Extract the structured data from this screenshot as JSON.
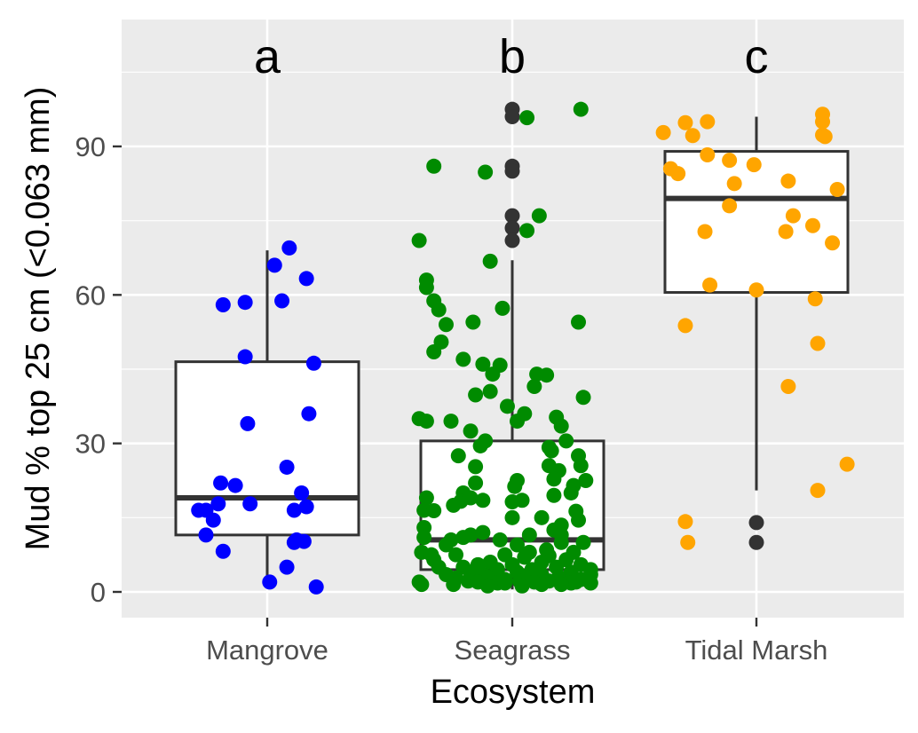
{
  "chart_data": {
    "type": "boxplot-jitter",
    "xlabel": "Ecosystem",
    "ylabel": "Mud % top 25 cm (<0.063 mm)",
    "ylim": [
      -5,
      115
    ],
    "yticks": [
      0,
      30,
      60,
      90
    ],
    "grid": true,
    "background": "#ebebeb",
    "outlier_color": "#333333",
    "categories": [
      "Mangrove",
      "Seagrass",
      "Tidal Marsh"
    ],
    "series": [
      {
        "category": "Mangrove",
        "letter": "a",
        "color": "#0000ff",
        "box": {
          "q1": 11.5,
          "median": 19,
          "q3": 46.5,
          "whisker_low": 2,
          "whisker_high": 69
        },
        "outliers": [],
        "points": [
          [
            -0.18,
            58
          ],
          [
            -0.09,
            58.5
          ],
          [
            0.03,
            66
          ],
          [
            0.09,
            69.5
          ],
          [
            0.16,
            63.3
          ],
          [
            0.06,
            58.8
          ],
          [
            -0.09,
            47.5
          ],
          [
            0.19,
            46.2
          ],
          [
            -0.08,
            34
          ],
          [
            0.17,
            36
          ],
          [
            0.08,
            25.2
          ],
          [
            -0.19,
            22
          ],
          [
            -0.13,
            21.5
          ],
          [
            -0.25,
            16.5
          ],
          [
            -0.28,
            16.5
          ],
          [
            -0.25,
            11.5
          ],
          [
            -0.22,
            14.5
          ],
          [
            -0.2,
            17.8
          ],
          [
            -0.07,
            17.8
          ],
          [
            0.11,
            16.5
          ],
          [
            0.16,
            17.2
          ],
          [
            0.14,
            20
          ],
          [
            0.11,
            10
          ],
          [
            0.15,
            10.2
          ],
          [
            0.12,
            10.5
          ],
          [
            -0.18,
            8.2
          ],
          [
            0.08,
            5
          ],
          [
            0.01,
            2
          ],
          [
            0.2,
            1
          ]
        ]
      },
      {
        "category": "Seagrass",
        "letter": "b",
        "color": "#008b00",
        "box": {
          "q1": 4.5,
          "median": 10.5,
          "q3": 30.5,
          "whisker_low": 0.5,
          "whisker_high": 67
        },
        "outliers": [
          97.5,
          96,
          86,
          85,
          76,
          73.5,
          71
        ],
        "points": [
          [
            0.28,
            97.5
          ],
          [
            0.06,
            95.8
          ],
          [
            -0.32,
            86
          ],
          [
            -0.11,
            84.8
          ],
          [
            0.11,
            76
          ],
          [
            0.06,
            73
          ],
          [
            -0.38,
            71
          ],
          [
            -0.09,
            66.8
          ],
          [
            -0.35,
            63
          ],
          [
            -0.35,
            61.5
          ],
          [
            -0.32,
            58.8
          ],
          [
            -0.3,
            57
          ],
          [
            -0.04,
            57.3
          ],
          [
            0.27,
            54.5
          ],
          [
            -0.27,
            54
          ],
          [
            -0.16,
            54.5
          ],
          [
            -0.29,
            50.5
          ],
          [
            -0.32,
            48.5
          ],
          [
            -0.2,
            47
          ],
          [
            -0.12,
            46
          ],
          [
            -0.05,
            45.8
          ],
          [
            -0.08,
            44
          ],
          [
            0.1,
            44
          ],
          [
            0.14,
            43.8
          ],
          [
            -0.09,
            40.5
          ],
          [
            0.09,
            41.5
          ],
          [
            -0.15,
            39.8
          ],
          [
            0.29,
            39.3
          ],
          [
            -0.02,
            37.5
          ],
          [
            0.05,
            36
          ],
          [
            0.02,
            34.5
          ],
          [
            -0.38,
            35
          ],
          [
            0.18,
            35.3
          ],
          [
            -0.35,
            34.5
          ],
          [
            0.2,
            33.5
          ],
          [
            -0.25,
            34.5
          ],
          [
            -0.17,
            32.5
          ],
          [
            -0.11,
            30.5
          ],
          [
            -0.13,
            29.5
          ],
          [
            0.15,
            29.2
          ],
          [
            0.22,
            30.5
          ],
          [
            0.16,
            28.5
          ],
          [
            0.27,
            27.5
          ],
          [
            -0.22,
            27.5
          ],
          [
            0.15,
            25.5
          ],
          [
            0.19,
            24.5
          ],
          [
            0.28,
            25.5
          ],
          [
            -0.15,
            25.3
          ],
          [
            0.17,
            22.8
          ],
          [
            0.02,
            22.5
          ],
          [
            -0.15,
            22
          ],
          [
            0.3,
            22.5
          ],
          [
            0.25,
            21.5
          ],
          [
            0.24,
            20
          ],
          [
            0.01,
            21.3
          ],
          [
            -0.2,
            20
          ],
          [
            -0.21,
            18.3
          ],
          [
            -0.17,
            19
          ],
          [
            0.17,
            19.5
          ],
          [
            -0.35,
            19
          ],
          [
            -0.12,
            18.5
          ],
          [
            0.04,
            18.5
          ],
          [
            0.0,
            18.2
          ],
          [
            -0.36,
            16.5
          ],
          [
            -0.24,
            17.5
          ],
          [
            -0.32,
            16.4
          ],
          [
            0.26,
            16.3
          ],
          [
            0.12,
            15
          ],
          [
            0.2,
            13.5
          ],
          [
            0.0,
            15
          ],
          [
            -0.36,
            13
          ],
          [
            0.17,
            12.5
          ],
          [
            0.27,
            14.5
          ],
          [
            -0.17,
            11.5
          ],
          [
            -0.12,
            12
          ],
          [
            0.2,
            11.5
          ],
          [
            0.07,
            11.5
          ],
          [
            -0.25,
            10.5
          ],
          [
            -0.2,
            11
          ],
          [
            0.29,
            10
          ],
          [
            -0.36,
            11
          ],
          [
            0.2,
            10
          ],
          [
            -0.27,
            9.5
          ],
          [
            -0.05,
            10.5
          ],
          [
            0.14,
            8.5
          ],
          [
            0.02,
            9.5
          ],
          [
            -0.37,
            8
          ],
          [
            -0.33,
            7.5
          ],
          [
            0.07,
            8
          ],
          [
            0.25,
            8
          ],
          [
            -0.03,
            7.5
          ],
          [
            -0.23,
            7.5
          ],
          [
            0.15,
            7.3
          ],
          [
            0.05,
            7
          ],
          [
            0.22,
            6.5
          ],
          [
            -0.32,
            6.5
          ],
          [
            -0.09,
            6
          ],
          [
            0.12,
            6
          ],
          [
            0.0,
            5.5
          ],
          [
            -0.14,
            5.5
          ],
          [
            0.28,
            5.5
          ],
          [
            -0.3,
            5
          ],
          [
            0.18,
            5
          ],
          [
            -0.2,
            5
          ],
          [
            0.08,
            4.5
          ],
          [
            -0.06,
            4.5
          ],
          [
            0.32,
            4.5
          ],
          [
            -0.17,
            4
          ],
          [
            0.02,
            4
          ],
          [
            0.24,
            4
          ],
          [
            -0.12,
            3.5
          ],
          [
            0.12,
            3.5
          ],
          [
            -0.27,
            3.5
          ],
          [
            0.32,
            3.5
          ],
          [
            0.06,
            3
          ],
          [
            -0.1,
            3
          ],
          [
            0.19,
            3
          ],
          [
            -0.23,
            2.8
          ],
          [
            0.28,
            2.5
          ],
          [
            -0.03,
            2.5
          ],
          [
            -0.18,
            2.2
          ],
          [
            0.15,
            2.2
          ],
          [
            0.03,
            2.2
          ],
          [
            -0.38,
            2
          ],
          [
            0.09,
            2
          ],
          [
            -0.14,
            2
          ],
          [
            0.24,
            1.8
          ],
          [
            -0.06,
            1.8
          ],
          [
            0.32,
            1.8
          ],
          [
            0.12,
            1.5
          ],
          [
            -0.37,
            1.5
          ],
          [
            0.04,
            1.2
          ],
          [
            -0.24,
            1.5
          ],
          [
            0.2,
            1.5
          ],
          [
            -0.1,
            1.2
          ],
          [
            -0.03,
            1.8
          ],
          [
            0.26,
            2
          ]
        ]
      },
      {
        "category": "Tidal Marsh",
        "letter": "c",
        "color": "#ffa500",
        "box": {
          "q1": 60.5,
          "median": 79.5,
          "q3": 89,
          "whisker_low": 20.5,
          "whisker_high": 96
        },
        "outliers": [
          14,
          10
        ],
        "points": [
          [
            -0.38,
            92.8
          ],
          [
            -0.29,
            94.8
          ],
          [
            -0.26,
            92.2
          ],
          [
            -0.2,
            95
          ],
          [
            0.27,
            96.5
          ],
          [
            0.27,
            92.3
          ],
          [
            0.27,
            95
          ],
          [
            0.28,
            92
          ],
          [
            -0.35,
            85.5
          ],
          [
            -0.32,
            84.5
          ],
          [
            -0.2,
            88.3
          ],
          [
            -0.11,
            87.2
          ],
          [
            -0.01,
            86.3
          ],
          [
            -0.09,
            82.5
          ],
          [
            0.13,
            83
          ],
          [
            0.33,
            81.3
          ],
          [
            -0.11,
            78
          ],
          [
            0.15,
            76
          ],
          [
            0.23,
            74
          ],
          [
            -0.21,
            72.8
          ],
          [
            0.12,
            72.8
          ],
          [
            0.31,
            70.5
          ],
          [
            -0.19,
            62
          ],
          [
            0.0,
            61
          ],
          [
            0.24,
            59.2
          ],
          [
            -0.29,
            53.8
          ],
          [
            0.25,
            50.2
          ],
          [
            0.13,
            41.5
          ],
          [
            0.37,
            25.8
          ],
          [
            0.25,
            20.5
          ],
          [
            -0.29,
            14.2
          ],
          [
            -0.28,
            10
          ]
        ]
      }
    ]
  }
}
